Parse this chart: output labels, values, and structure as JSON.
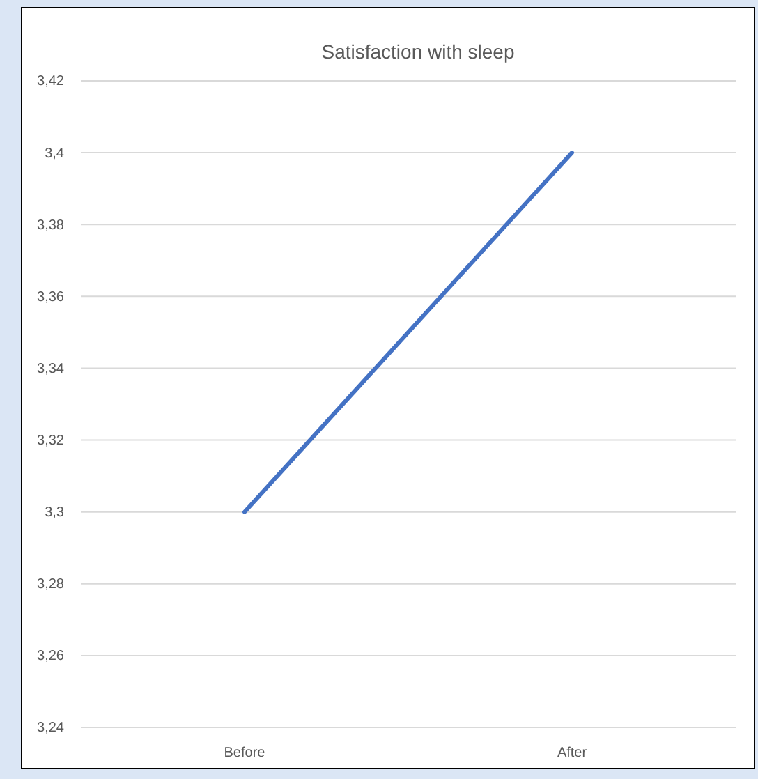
{
  "chart_data": {
    "type": "line",
    "title": "Satisfaction with sleep",
    "categories": [
      "Before",
      "After"
    ],
    "series": [
      {
        "color": "#4472c4",
        "values": [
          3.3,
          3.4
        ]
      }
    ],
    "ylim": [
      3.24,
      3.42
    ],
    "yticks": [
      {
        "value": 3.24,
        "label": "3,24"
      },
      {
        "value": 3.26,
        "label": "3,26"
      },
      {
        "value": 3.28,
        "label": "3,28"
      },
      {
        "value": 3.3,
        "label": "3,3"
      },
      {
        "value": 3.32,
        "label": "3,32"
      },
      {
        "value": 3.34,
        "label": "3,34"
      },
      {
        "value": 3.36,
        "label": "3,36"
      },
      {
        "value": 3.38,
        "label": "3,38"
      },
      {
        "value": 3.4,
        "label": "3,4"
      },
      {
        "value": 3.42,
        "label": "3,42"
      }
    ],
    "grid": "y",
    "marker": "none",
    "line_style": "solid"
  }
}
